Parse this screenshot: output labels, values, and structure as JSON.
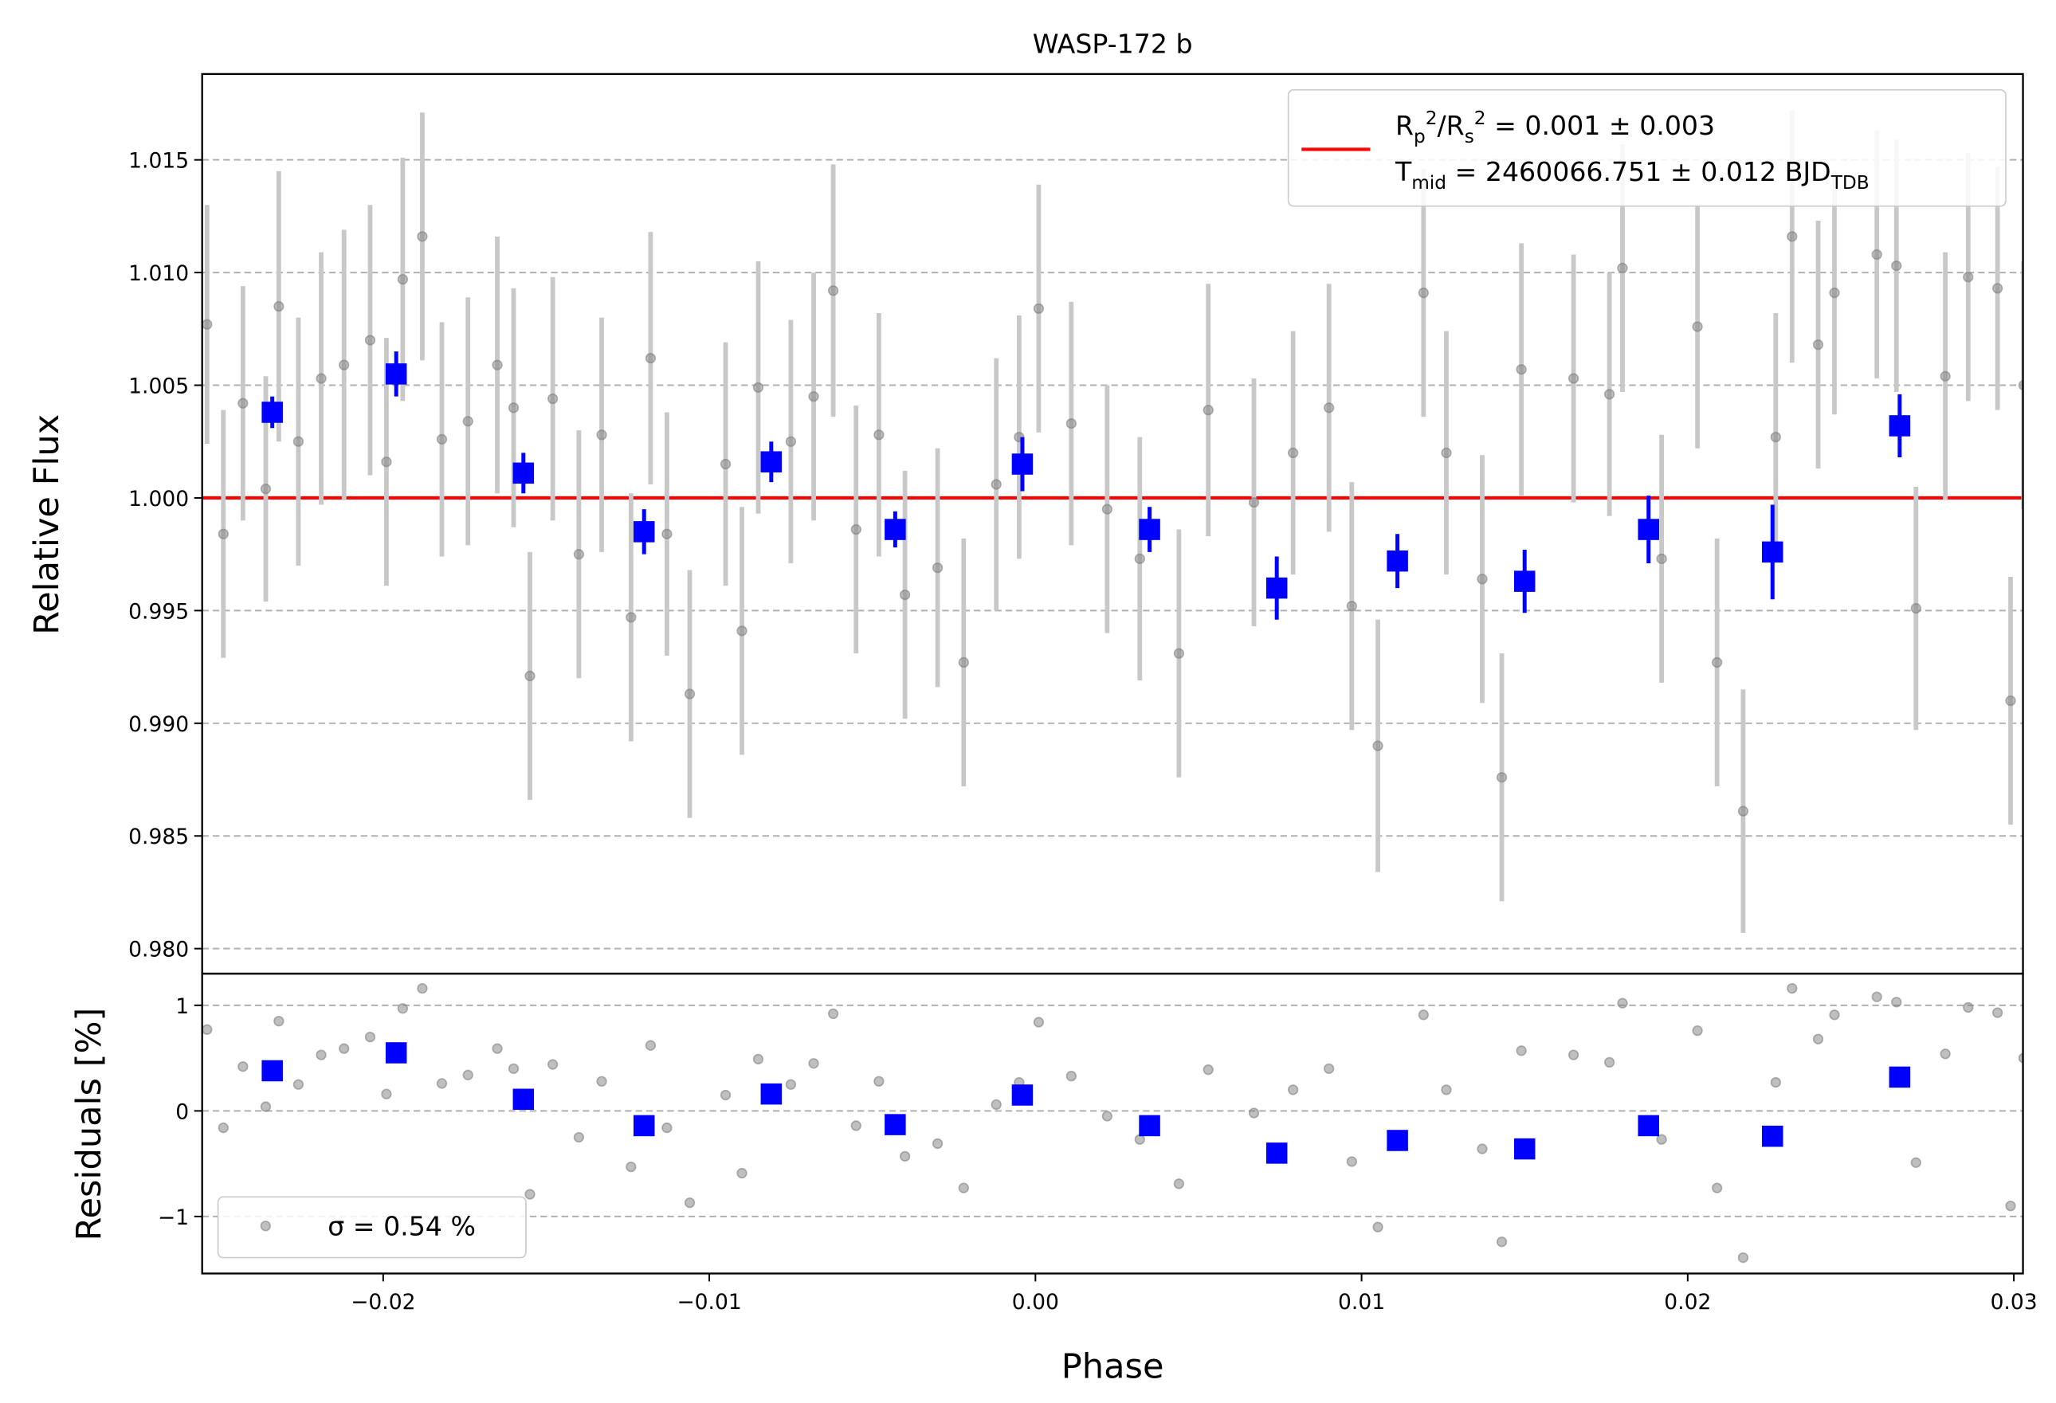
{
  "chart_data": [
    {
      "type": "scatter",
      "title": "WASP-172 b",
      "ylabel": "Relative Flux",
      "xlim": [
        -0.02555,
        0.03028
      ],
      "ylim": [
        0.97889,
        1.01881
      ],
      "yticks": [
        {
          "value": 0.98,
          "label": "0.980"
        },
        0.985,
        {
          "value": 0.99,
          "label": "0.990"
        },
        0.995,
        {
          "value": 1.0,
          "label": "1.000"
        },
        1.005,
        {
          "value": 1.01,
          "label": "1.010"
        },
        1.015
      ],
      "grid": true,
      "legend": "upper right",
      "model": {
        "value": 1.0,
        "color": "#ff0000",
        "label": [
          "R_p^2/R_s^2 = 0.001 ± 0.003",
          "T_{mid} = 2460066.751 ± 0.012 BJD_{TDB}"
        ]
      },
      "series": [
        {
          "color": "#808080",
          "errcolor": "#c8c8c8",
          "x": [
            -0.0254,
            -0.0249,
            -0.0243,
            -0.0236,
            -0.0232,
            -0.0226,
            -0.0219,
            -0.0212,
            -0.0204,
            -0.0199,
            -0.0194,
            -0.0188,
            -0.0182,
            -0.0174,
            -0.0165,
            -0.016,
            -0.0155,
            -0.0148,
            -0.014,
            -0.0133,
            -0.0124,
            -0.0118,
            -0.0113,
            -0.0106,
            -0.0095,
            -0.009,
            -0.0085,
            -0.0075,
            -0.0068,
            -0.0062,
            -0.0055,
            -0.0048,
            -0.004,
            -0.003,
            -0.0022,
            -0.0012,
            -0.0005,
            0.0001,
            0.0011,
            0.0022,
            0.0032,
            0.0044,
            0.0053,
            0.0067,
            0.0079,
            0.009,
            0.0097,
            0.0105,
            0.0119,
            0.0126,
            0.0137,
            0.0143,
            0.0149,
            0.0165,
            0.0176,
            0.018,
            0.0192,
            0.0203,
            0.0209,
            0.0217,
            0.0227,
            0.0232,
            0.024,
            0.0245,
            0.0258,
            0.0264,
            0.027,
            0.0279,
            0.0286,
            0.0295,
            0.0299,
            0.0303
          ],
          "y": [
            1.0077,
            0.9984,
            1.0042,
            1.0004,
            1.0085,
            1.0025,
            1.0053,
            1.0059,
            1.007,
            1.0016,
            1.0097,
            1.0116,
            1.0026,
            1.0034,
            1.0059,
            1.004,
            0.9921,
            1.0044,
            0.9975,
            1.0028,
            0.9947,
            1.0062,
            0.9984,
            0.9913,
            1.0015,
            0.9941,
            1.0049,
            1.0025,
            1.0045,
            1.0092,
            0.9986,
            1.0028,
            0.9957,
            0.9969,
            0.9927,
            1.0006,
            1.0027,
            1.0084,
            1.0033,
            0.9995,
            0.9973,
            0.9931,
            1.0039,
            0.9998,
            1.002,
            1.004,
            0.9952,
            0.989,
            1.0091,
            1.002,
            0.9964,
            0.9876,
            1.0057,
            1.0053,
            1.0046,
            1.0102,
            0.9973,
            1.0076,
            0.9927,
            0.9861,
            1.0027,
            1.0116,
            1.0068,
            1.0091,
            1.0108,
            1.0103,
            0.9951,
            1.0054,
            1.0098,
            1.0093,
            0.991,
            1.005
          ],
          "err": [
            0.0053,
            0.0055,
            0.0052,
            0.005,
            0.006,
            0.0055,
            0.0056,
            0.006,
            0.006,
            0.0055,
            0.0054,
            0.0055,
            0.0052,
            0.0055,
            0.0057,
            0.0053,
            0.0055,
            0.0054,
            0.0055,
            0.0052,
            0.0055,
            0.0056,
            0.0054,
            0.0055,
            0.0054,
            0.0055,
            0.0056,
            0.0054,
            0.0055,
            0.0056,
            0.0055,
            0.0054,
            0.0055,
            0.0053,
            0.0055,
            0.0056,
            0.0054,
            0.0055,
            0.0054,
            0.0055,
            0.0054,
            0.0055,
            0.0056,
            0.0055,
            0.0054,
            0.0055,
            0.0055,
            0.0056,
            0.0055,
            0.0054,
            0.0055,
            0.0055,
            0.0056,
            0.0055,
            0.0054,
            0.0055,
            0.0055,
            0.0054,
            0.0055,
            0.0054,
            0.0055,
            0.0056,
            0.0055,
            0.0054,
            0.0055,
            0.0056,
            0.0054,
            0.0055,
            0.0055,
            0.0054,
            0.0055,
            0.0055
          ]
        },
        {
          "color": "#0000ff",
          "x": [
            -0.0234,
            -0.0196,
            -0.0157,
            -0.012,
            -0.0081,
            -0.0043,
            -0.0004,
            0.0035,
            0.0074,
            0.0111,
            0.015,
            0.0188,
            0.0226,
            0.0265
          ],
          "y": [
            1.0038,
            1.0055,
            1.0011,
            0.9985,
            1.0016,
            0.9986,
            1.0015,
            0.9986,
            0.996,
            0.9972,
            0.9963,
            0.9986,
            0.9976,
            1.0032
          ],
          "err": [
            0.0007,
            0.001,
            0.0009,
            0.001,
            0.0009,
            0.0008,
            0.0012,
            0.001,
            0.0014,
            0.0012,
            0.0014,
            0.0015,
            0.0021,
            0.0014
          ]
        }
      ]
    },
    {
      "type": "scatter",
      "xlabel": "Phase",
      "ylabel": "Residuals [%]",
      "xlim": [
        -0.02555,
        0.03028
      ],
      "ylim": [
        -1.54,
        1.3
      ],
      "xticks": [
        {
          "value": -0.02,
          "label": "−0.02"
        },
        {
          "value": -0.01,
          "label": "−0.01"
        },
        {
          "value": 0,
          "label": "0.00"
        },
        0.01,
        0.02,
        0.03
      ],
      "yticks": [
        {
          "value": -1,
          "label": "−1"
        },
        0,
        1
      ],
      "grid": true,
      "legend": "lower left",
      "series": [
        {
          "name": "σ = 0.54 %",
          "color": "#808080",
          "x": [
            -0.0254,
            -0.0249,
            -0.0243,
            -0.0236,
            -0.0232,
            -0.0226,
            -0.0219,
            -0.0212,
            -0.0204,
            -0.0199,
            -0.0194,
            -0.0188,
            -0.0182,
            -0.0174,
            -0.0165,
            -0.016,
            -0.0155,
            -0.0148,
            -0.014,
            -0.0133,
            -0.0124,
            -0.0118,
            -0.0113,
            -0.0106,
            -0.0095,
            -0.009,
            -0.0085,
            -0.0075,
            -0.0068,
            -0.0062,
            -0.0055,
            -0.0048,
            -0.004,
            -0.003,
            -0.0022,
            -0.0012,
            -0.0005,
            0.0001,
            0.0011,
            0.0022,
            0.0032,
            0.0044,
            0.0053,
            0.0067,
            0.0079,
            0.009,
            0.0097,
            0.0105,
            0.0119,
            0.0126,
            0.0137,
            0.0143,
            0.0149,
            0.0165,
            0.0176,
            0.018,
            0.0192,
            0.0203,
            0.0209,
            0.0217,
            0.0227,
            0.0232,
            0.024,
            0.0245,
            0.0258,
            0.0264,
            0.027,
            0.0279,
            0.0286,
            0.0295,
            0.0299,
            0.0303
          ],
          "y": [
            0.77,
            -0.16,
            0.42,
            0.04,
            0.85,
            0.25,
            0.53,
            0.59,
            0.7,
            0.16,
            0.97,
            1.16,
            0.26,
            0.34,
            0.59,
            0.4,
            -0.79,
            0.44,
            -0.25,
            0.28,
            -0.53,
            0.62,
            -0.16,
            -0.87,
            0.15,
            -0.59,
            0.49,
            0.25,
            0.45,
            0.92,
            -0.14,
            0.28,
            -0.43,
            -0.31,
            -0.73,
            0.06,
            0.27,
            0.84,
            0.33,
            -0.05,
            -0.27,
            -0.69,
            0.39,
            -0.02,
            0.2,
            0.4,
            -0.48,
            -1.1,
            0.91,
            0.2,
            -0.36,
            -1.24,
            0.57,
            0.53,
            0.46,
            1.02,
            -0.27,
            0.76,
            -0.73,
            -1.39,
            0.27,
            1.16,
            0.68,
            0.91,
            1.08,
            1.03,
            -0.49,
            0.54,
            0.98,
            0.93,
            -0.9,
            0.5
          ]
        },
        {
          "color": "#0000ff",
          "x": [
            -0.0234,
            -0.0196,
            -0.0157,
            -0.012,
            -0.0081,
            -0.0043,
            -0.0004,
            0.0035,
            0.0074,
            0.0111,
            0.015,
            0.0188,
            0.0226,
            0.0265
          ],
          "y": [
            0.38,
            0.55,
            0.11,
            -0.14,
            0.16,
            -0.13,
            0.15,
            -0.14,
            -0.4,
            -0.28,
            -0.36,
            -0.14,
            -0.24,
            0.32
          ]
        }
      ]
    }
  ]
}
